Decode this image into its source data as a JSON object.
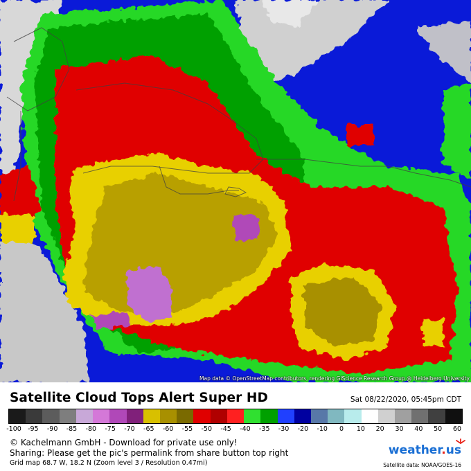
{
  "map": {
    "attribution": "Map data © OpenStreetMap contributors, rendering GIScience Research Group @ Heidelberg University"
  },
  "header": {
    "title": "Satellite Cloud Tops Alert Super HD",
    "datetime": "Sat 08/22/2020, 05:45pm CDT"
  },
  "scale": {
    "tick_labels": [
      "-100",
      "-95",
      "-90",
      "-85",
      "-80",
      "-75",
      "-70",
      "-65",
      "-60",
      "-55",
      "-50",
      "-45",
      "-40",
      "-35",
      "-30",
      "-20",
      "-10",
      "0",
      "10",
      "20",
      "30",
      "40",
      "50",
      "60"
    ],
    "colors": [
      "#1a1a1a",
      "#3a3a3a",
      "#5c5c5c",
      "#7e7e7e",
      "#c8a8d8",
      "#d478d8",
      "#b048b8",
      "#80207a",
      "#d8c000",
      "#a89000",
      "#7a6a00",
      "#e00000",
      "#b00000",
      "#ff2020",
      "#30e030",
      "#00a000",
      "#2040ff",
      "#0000a0",
      "#5878a8",
      "#80b8c0",
      "#b8ecec",
      "#ffffff",
      "#d0d0d0",
      "#a0a0a0",
      "#707070",
      "#404040",
      "#101010"
    ]
  },
  "footer": {
    "copyright": "© Kachelmann GmbH - Download for private use only!",
    "sharing": "Sharing: Please get the pic's permalink from share button top right",
    "grid": "Grid map 68.7 W, 18.2 N (Zoom level 3 / Resolution 0.47mi)",
    "logo_main": "weather",
    "logo_dot": ".",
    "logo_tld": "us",
    "source": "Satellite data: NOAA/GOES-16"
  }
}
